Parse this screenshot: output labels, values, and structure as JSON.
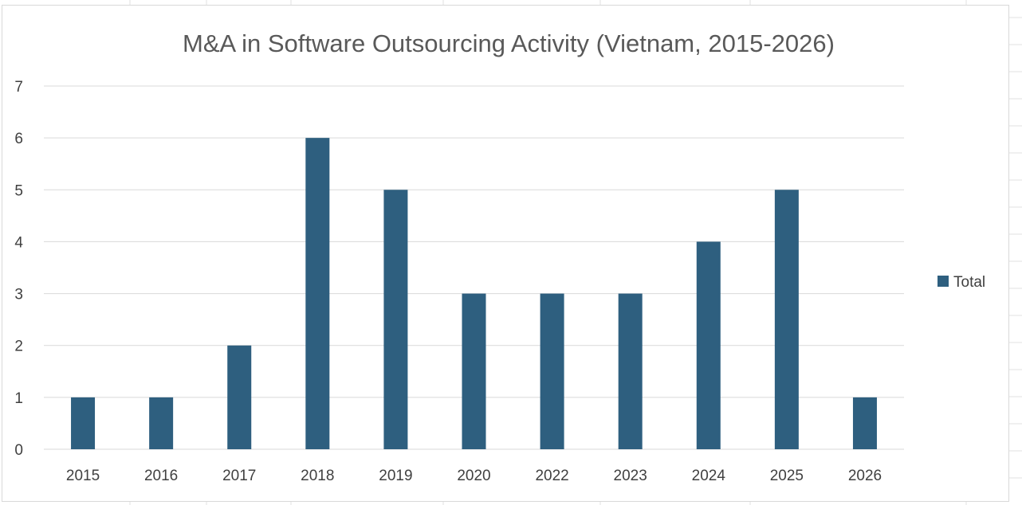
{
  "chart_data": {
    "type": "bar",
    "title": "M&A in Software Outsourcing Activity (Vietnam, 2015-2026)",
    "categories": [
      "2015",
      "2016",
      "2017",
      "2018",
      "2019",
      "2020",
      "2022",
      "2023",
      "2024",
      "2025",
      "2026"
    ],
    "series": [
      {
        "name": "Total",
        "values": [
          1,
          1,
          2,
          6,
          5,
          3,
          3,
          3,
          4,
          5,
          1
        ]
      }
    ],
    "yticks": [
      "0",
      "1",
      "2",
      "3",
      "4",
      "5",
      "6",
      "7"
    ],
    "ylim": [
      0,
      7
    ],
    "xlabel": "",
    "ylabel": "",
    "grid": true,
    "legend_position": "right",
    "colors": {
      "bar": "#2e5f7f",
      "grid": "#d9d9d9",
      "text": "#404040",
      "title": "#595959",
      "sheet_grid": "#e0e0e0"
    }
  }
}
